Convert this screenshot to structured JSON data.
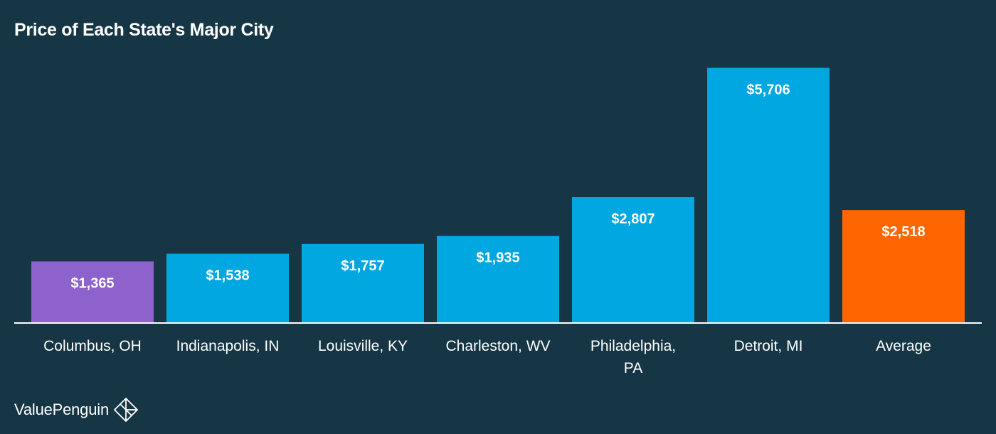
{
  "chart_data": {
    "type": "bar",
    "title": "Price of Each State's Major City",
    "xlabel": "",
    "ylabel": "",
    "categories": [
      [
        "Columbus, OH"
      ],
      [
        "Indianapolis, IN"
      ],
      [
        "Louisville, KY"
      ],
      [
        "Charleston, WV"
      ],
      [
        "Philadelphia,",
        "PA"
      ],
      [
        "Detroit, MI"
      ],
      [
        "Average"
      ]
    ],
    "values": [
      1365,
      1538,
      1757,
      1935,
      2807,
      5706,
      2518
    ],
    "value_labels": [
      "$1,365",
      "$1,538",
      "$1,757",
      "$1,935",
      "$2,807",
      "$5,706",
      "$2,518"
    ],
    "bar_colors": [
      "#8e62cc",
      "#00a7e1",
      "#00a7e1",
      "#00a7e1",
      "#00a7e1",
      "#00a7e1",
      "#ff6600"
    ],
    "ylim": [
      0,
      5950
    ],
    "grid": false,
    "legend": "none"
  },
  "colors": {
    "background": "#163645",
    "axis_line": "#ffffff",
    "text": "#ffffff"
  },
  "brand": {
    "name": "ValuePenguin",
    "logo_icon": "valuepenguin-logo-icon"
  }
}
